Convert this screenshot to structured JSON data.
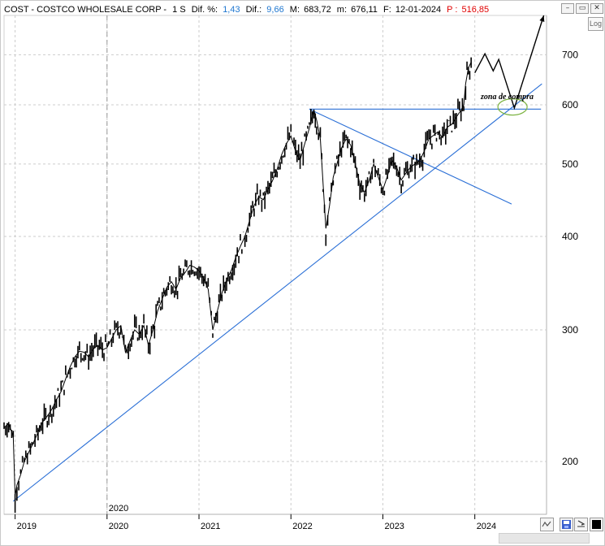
{
  "header": {
    "ticker": "COST - COSTCO WHOLESALE CORP -",
    "timeframe": "1 S",
    "dif_pct_label": "Dif. %:",
    "dif_pct_value": "1,43",
    "dif_label": "Dif.:",
    "dif_value": "9,66",
    "max_label": "M:",
    "max_value": "683,72",
    "min_label": "m:",
    "min_value": "676,11",
    "date_label": "F:",
    "date_value": "12-01-2024",
    "price_label": "P :",
    "price_value": "516,85"
  },
  "window_controls": {
    "minimize": "–",
    "restore": "▭",
    "close": "✕"
  },
  "log_button": "Log",
  "annotation": "zona de compra",
  "colors": {
    "text_blue": "#1f77d0",
    "text_red": "#e00000",
    "trendline": "#2a6fd6",
    "ellipse": "#7cb342",
    "candles": "#000000",
    "grid": "#cccccc"
  },
  "chart_data": {
    "type": "line",
    "title": "COST - COSTCO WHOLESALE CORP",
    "scale": "log",
    "ylim": [
      170,
      790
    ],
    "y_ticks": [
      200,
      300,
      400,
      500,
      600,
      700
    ],
    "y_tick_labels": [
      "200",
      "300",
      "400",
      "500",
      "600",
      "700"
    ],
    "xlim": [
      2018.88,
      2024.78
    ],
    "x_ticks": [
      2019,
      2020,
      2021,
      2022,
      2023,
      2024
    ],
    "x_tick_labels": [
      "2019",
      "2020",
      "2021",
      "2022",
      "2023",
      "2024"
    ],
    "cursor_label": "2020",
    "cursor_x": 2020.0,
    "grid": true,
    "series": [
      {
        "points": [
          [
            2018.88,
            222
          ],
          [
            2018.93,
            225
          ],
          [
            2018.98,
            216
          ],
          [
            2019.0,
            180
          ],
          [
            2019.02,
            186
          ],
          [
            2019.06,
            192
          ],
          [
            2019.1,
            200
          ],
          [
            2019.15,
            206
          ],
          [
            2019.2,
            212
          ],
          [
            2019.25,
            219
          ],
          [
            2019.3,
            226
          ],
          [
            2019.35,
            230
          ],
          [
            2019.4,
            235
          ],
          [
            2019.45,
            242
          ],
          [
            2019.5,
            248
          ],
          [
            2019.55,
            258
          ],
          [
            2019.6,
            268
          ],
          [
            2019.65,
            276
          ],
          [
            2019.7,
            281
          ],
          [
            2019.75,
            280
          ],
          [
            2019.8,
            276
          ],
          [
            2019.85,
            283
          ],
          [
            2019.9,
            286
          ],
          [
            2019.95,
            282
          ],
          [
            2020.0,
            284
          ],
          [
            2020.05,
            292
          ],
          [
            2020.1,
            300
          ],
          [
            2020.15,
            304
          ],
          [
            2020.2,
            280
          ],
          [
            2020.25,
            290
          ],
          [
            2020.3,
            300
          ],
          [
            2020.35,
            296
          ],
          [
            2020.4,
            304
          ],
          [
            2020.45,
            286
          ],
          [
            2020.5,
            300
          ],
          [
            2020.55,
            318
          ],
          [
            2020.6,
            330
          ],
          [
            2020.65,
            342
          ],
          [
            2020.7,
            348
          ],
          [
            2020.75,
            340
          ],
          [
            2020.8,
            352
          ],
          [
            2020.85,
            358
          ],
          [
            2020.9,
            366
          ],
          [
            2020.95,
            364
          ],
          [
            2021.0,
            360
          ],
          [
            2021.05,
            352
          ],
          [
            2021.1,
            340
          ],
          [
            2021.15,
            300
          ],
          [
            2021.2,
            318
          ],
          [
            2021.25,
            336
          ],
          [
            2021.3,
            350
          ],
          [
            2021.35,
            360
          ],
          [
            2021.4,
            375
          ],
          [
            2021.45,
            388
          ],
          [
            2021.5,
            400
          ],
          [
            2021.55,
            420
          ],
          [
            2021.6,
            440
          ],
          [
            2021.65,
            452
          ],
          [
            2021.7,
            448
          ],
          [
            2021.75,
            462
          ],
          [
            2021.8,
            475
          ],
          [
            2021.85,
            492
          ],
          [
            2021.9,
            515
          ],
          [
            2021.95,
            532
          ],
          [
            2022.0,
            545
          ],
          [
            2022.05,
            520
          ],
          [
            2022.1,
            506
          ],
          [
            2022.15,
            532
          ],
          [
            2022.2,
            558
          ],
          [
            2022.25,
            590
          ],
          [
            2022.28,
            572
          ],
          [
            2022.32,
            540
          ],
          [
            2022.35,
            470
          ],
          [
            2022.38,
            410
          ],
          [
            2022.42,
            440
          ],
          [
            2022.46,
            480
          ],
          [
            2022.5,
            500
          ],
          [
            2022.55,
            525
          ],
          [
            2022.6,
            540
          ],
          [
            2022.65,
            530
          ],
          [
            2022.7,
            500
          ],
          [
            2022.75,
            470
          ],
          [
            2022.8,
            458
          ],
          [
            2022.85,
            475
          ],
          [
            2022.9,
            500
          ],
          [
            2022.95,
            480
          ],
          [
            2023.0,
            462
          ],
          [
            2023.05,
            482
          ],
          [
            2023.1,
            506
          ],
          [
            2023.15,
            495
          ],
          [
            2023.2,
            476
          ],
          [
            2023.25,
            486
          ],
          [
            2023.3,
            495
          ],
          [
            2023.35,
            500
          ],
          [
            2023.4,
            505
          ],
          [
            2023.45,
            520
          ],
          [
            2023.5,
            540
          ],
          [
            2023.55,
            546
          ],
          [
            2023.6,
            552
          ],
          [
            2023.65,
            542
          ],
          [
            2023.7,
            560
          ],
          [
            2023.75,
            565
          ],
          [
            2023.8,
            578
          ],
          [
            2023.85,
            590
          ],
          [
            2023.88,
            600
          ],
          [
            2023.9,
            640
          ],
          [
            2023.93,
            672
          ],
          [
            2023.96,
            684
          ]
        ]
      }
    ],
    "projection": [
      [
        2024.0,
        662
      ],
      [
        2024.11,
        702
      ],
      [
        2024.2,
        666
      ],
      [
        2024.26,
        690
      ],
      [
        2024.43,
        594
      ],
      [
        2024.75,
        790
      ]
    ],
    "trendlines": [
      {
        "from": [
          2018.98,
          177
        ],
        "to": [
          2024.73,
          640
        ]
      },
      {
        "from": [
          2022.2,
          592
        ],
        "to": [
          2024.4,
          442
        ]
      },
      {
        "from": [
          2022.2,
          592
        ],
        "to": [
          2024.72,
          592
        ]
      }
    ],
    "zone": {
      "label": "zona de compra",
      "center": [
        2024.41,
        596
      ]
    }
  }
}
